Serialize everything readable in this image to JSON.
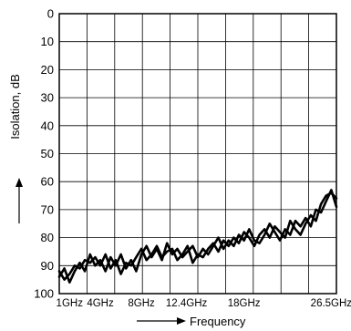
{
  "chart_data": {
    "type": "line",
    "ylabel": "Isolation, dB",
    "xlabel": "Frequency",
    "y_reversed": true,
    "ylim": [
      0,
      100
    ],
    "y_ticks": [
      0,
      10,
      20,
      30,
      40,
      50,
      60,
      70,
      80,
      90,
      100
    ],
    "x_range_ghz": [
      0,
      27
    ],
    "x_tick_labels": [
      {
        "value": 1,
        "label": "1GHz"
      },
      {
        "value": 4,
        "label": "4GHz"
      },
      {
        "value": 8,
        "label": "8GHz"
      },
      {
        "value": 12.4,
        "label": "12.4GHz"
      },
      {
        "value": 18,
        "label": "18GHz"
      },
      {
        "value": 26.5,
        "label": "26.5GHz"
      }
    ],
    "grid": true,
    "series": [
      {
        "x": [
          0.0,
          0.5,
          1.0,
          1.5,
          2.0,
          2.5,
          3.0,
          3.5,
          4.0,
          4.5,
          5.0,
          5.5,
          6.0,
          6.5,
          7.0,
          7.5,
          8.0,
          8.5,
          9.0,
          9.5,
          10.0,
          10.5,
          11.0,
          11.5,
          12.0,
          12.5,
          13.0,
          13.5,
          14.0,
          14.5,
          15.0,
          15.5,
          16.0,
          16.5,
          17.0,
          17.5,
          18.0,
          18.5,
          19.0,
          19.5,
          20.0,
          20.5,
          21.0,
          21.5,
          22.0,
          22.5,
          23.0,
          23.5,
          24.0,
          24.5,
          25.0,
          25.5,
          26.0,
          26.5,
          27.0
        ],
        "y": [
          92,
          95,
          93,
          90,
          91,
          88,
          89,
          87,
          90,
          86,
          91,
          88,
          93,
          89,
          90,
          87,
          84,
          88,
          86,
          83,
          87,
          85,
          84,
          88,
          86,
          83,
          89,
          86,
          87,
          84,
          82,
          85,
          81,
          83,
          80,
          82,
          78,
          80,
          83,
          79,
          77,
          80,
          76,
          78,
          80,
          74,
          77,
          79,
          75,
          72,
          74,
          68,
          65,
          64,
          66
        ]
      },
      {
        "x": [
          0.0,
          0.5,
          1.0,
          1.5,
          2.0,
          2.5,
          3.0,
          3.5,
          4.0,
          4.5,
          5.0,
          5.5,
          6.0,
          6.5,
          7.0,
          7.5,
          8.0,
          8.5,
          9.0,
          9.5,
          10.0,
          10.5,
          11.0,
          11.5,
          12.0,
          12.5,
          13.0,
          13.5,
          14.0,
          14.5,
          15.0,
          15.5,
          16.0,
          16.5,
          17.0,
          17.5,
          18.0,
          18.5,
          19.0,
          19.5,
          20.0,
          20.5,
          21.0,
          21.5,
          22.0,
          22.5,
          23.0,
          23.5,
          24.0,
          24.5,
          25.0,
          25.5,
          26.0,
          26.5,
          27.0
        ],
        "y": [
          94,
          91,
          96,
          92,
          89,
          92,
          86,
          90,
          88,
          92,
          87,
          90,
          86,
          91,
          88,
          92,
          86,
          83,
          87,
          84,
          88,
          82,
          86,
          84,
          87,
          85,
          83,
          87,
          84,
          86,
          83,
          80,
          84,
          81,
          83,
          79,
          81,
          77,
          81,
          82,
          79,
          75,
          78,
          81,
          77,
          79,
          74,
          76,
          73,
          76,
          70,
          71,
          67,
          63,
          69
        ]
      }
    ]
  }
}
